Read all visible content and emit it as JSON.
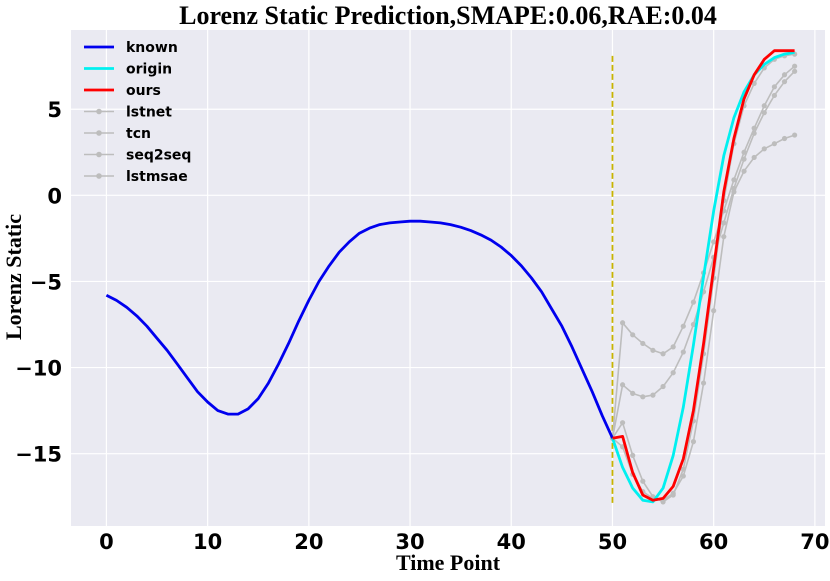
{
  "chart_data": {
    "type": "line",
    "title": "Lorenz Static Prediction,SMAPE:0.06,RAE:0.04",
    "xlabel": "Time Point",
    "ylabel": "Lorenz Static",
    "xlim": [
      -3.5,
      71
    ],
    "ylim": [
      -19.2,
      9.6
    ],
    "xticks": [
      0,
      10,
      20,
      30,
      40,
      50,
      60,
      70
    ],
    "yticks": [
      -15,
      -10,
      -5,
      0,
      5
    ],
    "ytick_labels": [
      "−15",
      "−10",
      "−5",
      "0",
      "5"
    ],
    "grid": true,
    "legend_position": "top-left",
    "vline": {
      "x": 50,
      "y_range": [
        -17.9,
        8.1
      ],
      "color": "#c8b400"
    },
    "series": [
      {
        "name": "known",
        "color": "#0000ee",
        "marker": false,
        "x": [
          0,
          1,
          2,
          3,
          4,
          5,
          6,
          7,
          8,
          9,
          10,
          11,
          12,
          13,
          14,
          15,
          16,
          17,
          18,
          19,
          20,
          21,
          22,
          23,
          24,
          25,
          26,
          27,
          28,
          29,
          30,
          31,
          32,
          33,
          34,
          35,
          36,
          37,
          38,
          39,
          40,
          41,
          42,
          43,
          44,
          45,
          46,
          47,
          48,
          49,
          50
        ],
        "y": [
          -5.8,
          -6.1,
          -6.5,
          -7.0,
          -7.6,
          -8.3,
          -9.0,
          -9.8,
          -10.6,
          -11.4,
          -12.0,
          -12.5,
          -12.7,
          -12.7,
          -12.4,
          -11.8,
          -10.9,
          -9.8,
          -8.6,
          -7.3,
          -6.1,
          -5.0,
          -4.1,
          -3.3,
          -2.7,
          -2.2,
          -1.9,
          -1.7,
          -1.6,
          -1.55,
          -1.5,
          -1.5,
          -1.55,
          -1.6,
          -1.7,
          -1.85,
          -2.05,
          -2.3,
          -2.6,
          -3.0,
          -3.5,
          -4.1,
          -4.8,
          -5.6,
          -6.6,
          -7.6,
          -8.8,
          -10.1,
          -11.4,
          -12.8,
          -14.1
        ]
      },
      {
        "name": "origin",
        "color": "#00f0f0",
        "marker": false,
        "x": [
          50,
          51,
          52,
          53,
          54,
          55,
          56,
          57,
          58,
          59,
          60,
          61,
          62,
          63,
          64,
          65,
          66,
          67,
          68
        ],
        "y": [
          -14.1,
          -15.8,
          -17.0,
          -17.7,
          -17.8,
          -17.0,
          -15.1,
          -12.3,
          -8.7,
          -4.7,
          -0.9,
          2.3,
          4.5,
          6.0,
          7.0,
          7.6,
          8.0,
          8.2,
          8.3
        ]
      },
      {
        "name": "ours",
        "color": "#ff0000",
        "marker": false,
        "x": [
          50,
          51,
          52,
          53,
          54,
          55,
          56,
          57,
          58,
          59,
          60,
          61,
          62,
          63,
          64,
          65,
          66,
          67,
          68
        ],
        "y": [
          -14.1,
          -14.0,
          -16.1,
          -17.4,
          -17.7,
          -17.6,
          -16.9,
          -15.3,
          -12.5,
          -8.6,
          -4.2,
          0.2,
          3.3,
          5.6,
          7.0,
          7.9,
          8.4,
          8.4,
          8.4
        ]
      },
      {
        "name": "lstnet",
        "color": "#bdbdbd",
        "marker": true,
        "x": [
          50,
          51,
          52,
          53,
          54,
          55,
          56,
          57,
          58,
          59,
          60,
          61,
          62,
          63,
          64,
          65,
          66,
          67,
          68
        ],
        "y": [
          -14.1,
          -7.4,
          -8.1,
          -8.6,
          -9.0,
          -9.2,
          -8.8,
          -7.6,
          -6.2,
          -4.5,
          -2.7,
          -0.9,
          0.9,
          2.5,
          3.9,
          5.2,
          6.3,
          7.0,
          7.5
        ]
      },
      {
        "name": "tcn",
        "color": "#bdbdbd",
        "marker": true,
        "x": [
          50,
          51,
          52,
          53,
          54,
          55,
          56,
          57,
          58,
          59,
          60,
          61,
          62,
          63,
          64,
          65,
          66,
          67,
          68
        ],
        "y": [
          -14.1,
          -11.0,
          -11.5,
          -11.7,
          -11.6,
          -11.1,
          -10.3,
          -9.1,
          -7.5,
          -5.6,
          -3.6,
          -1.6,
          0.4,
          2.1,
          3.6,
          4.8,
          5.8,
          6.6,
          7.2
        ]
      },
      {
        "name": "seq2seq",
        "color": "#bdbdbd",
        "marker": true,
        "x": [
          50,
          51,
          52,
          53,
          54,
          55,
          56,
          57,
          58,
          59,
          60,
          61,
          62,
          63,
          64,
          65,
          66,
          67,
          68
        ],
        "y": [
          -14.1,
          -13.2,
          -15.1,
          -16.6,
          -17.5,
          -17.8,
          -17.4,
          -15.9,
          -13.1,
          -9.2,
          -4.8,
          -0.3,
          3.0,
          5.2,
          6.5,
          7.4,
          7.9,
          8.1,
          8.2
        ]
      },
      {
        "name": "lstmsae",
        "color": "#bdbdbd",
        "marker": true,
        "x": [
          50,
          51,
          52,
          53,
          54,
          55,
          56,
          57,
          58,
          59,
          60,
          61,
          62,
          63,
          64,
          65,
          66,
          67,
          68
        ],
        "y": [
          -14.1,
          -14.6,
          -16.2,
          -17.2,
          -17.6,
          -17.7,
          -17.3,
          -16.3,
          -14.3,
          -10.9,
          -6.7,
          -2.4,
          0.2,
          1.4,
          2.2,
          2.7,
          3.0,
          3.3,
          3.5
        ]
      }
    ]
  }
}
